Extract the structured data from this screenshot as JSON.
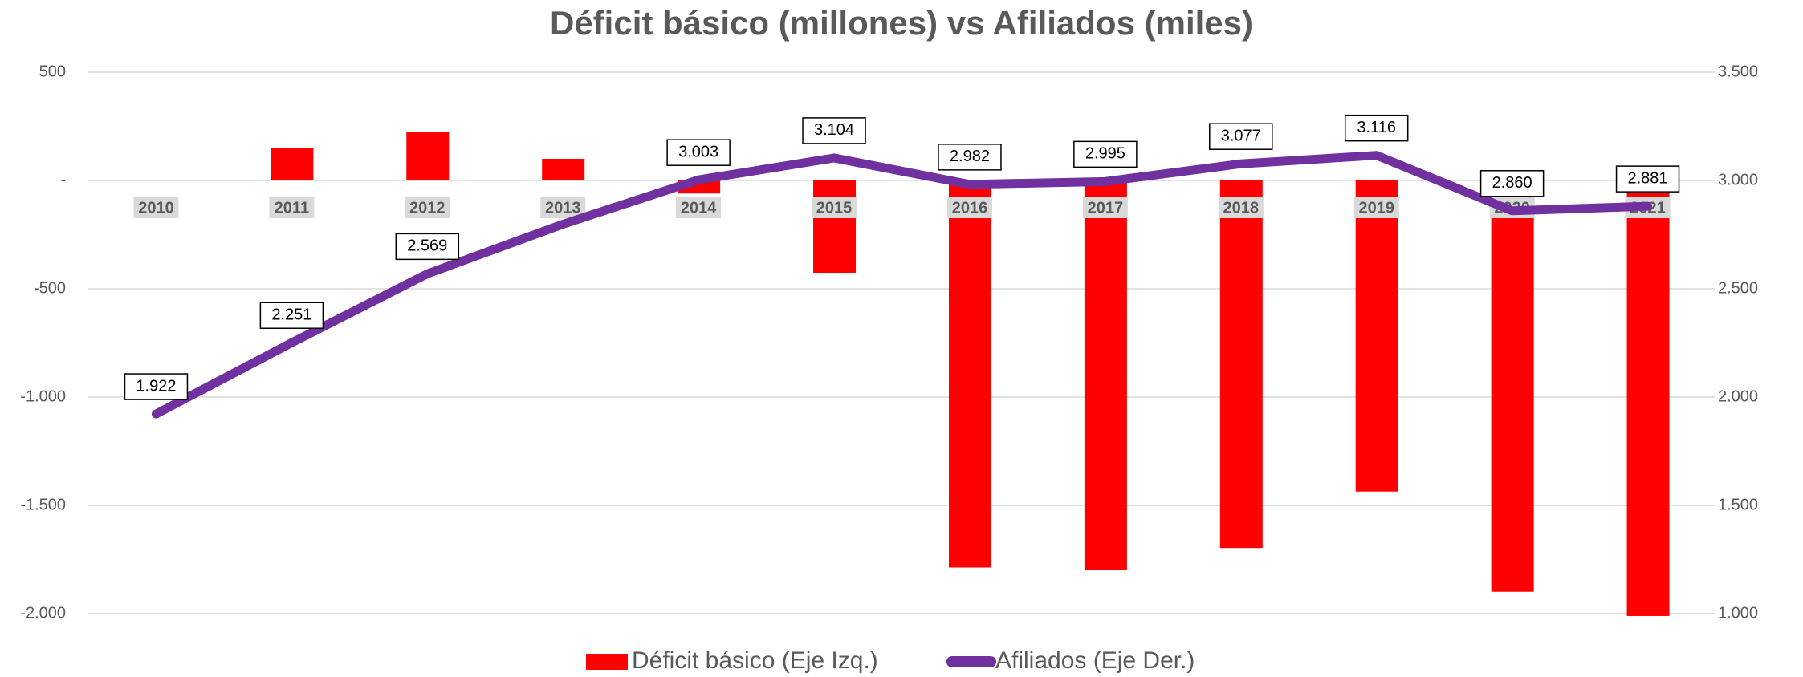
{
  "chart_data": {
    "type": "bar_line",
    "title": "Déficit básico (millones) vs Afiliados (miles)",
    "categories": [
      "2010",
      "2011",
      "2012",
      "2013",
      "2014",
      "2015",
      "2016",
      "2017",
      "2018",
      "2019",
      "2020",
      "2021"
    ],
    "series": [
      {
        "name": "Déficit básico (Eje Izq.)",
        "color": "#ff0000",
        "type": "bar",
        "values": [
          0,
          150,
          225,
          100,
          -60,
          -426,
          -1787,
          -1798,
          -1697,
          -1436,
          -1899,
          -2011
        ]
      },
      {
        "name": "Afiliados (Eje Der.)",
        "color": "#7030a0",
        "type": "line",
        "axis": "y2",
        "values": [
          1922,
          2251,
          2569,
          2798,
          3003,
          3104,
          2982,
          2995,
          3077,
          3116,
          2860,
          2881
        ],
        "value_labels": [
          "1.922",
          "2.251",
          "2.569",
          null,
          "3.003",
          "3.104",
          "2.982",
          "2.995",
          "3.077",
          "3.116",
          "2.860",
          "2.881"
        ]
      }
    ],
    "ylim": [
      -2000,
      500
    ],
    "yticks": [
      {
        "value": -2000,
        "label": "-2.000"
      },
      {
        "value": -1500,
        "label": "-1.500"
      },
      {
        "value": -1000,
        "label": "-1.000"
      },
      -500,
      {
        "value": 0,
        "label": "-"
      },
      500
    ],
    "y2lim": [
      1000,
      3500
    ],
    "y2ticks": [
      {
        "value": 1000,
        "label": "1.000"
      },
      {
        "value": 1500,
        "label": "1.500"
      },
      {
        "value": 2000,
        "label": "2.000"
      },
      {
        "value": 2500,
        "label": "2.500"
      },
      {
        "value": 3000,
        "label": "3.000"
      },
      {
        "value": 3500,
        "label": "3.500"
      }
    ],
    "grid": true,
    "legend": "bottom"
  }
}
